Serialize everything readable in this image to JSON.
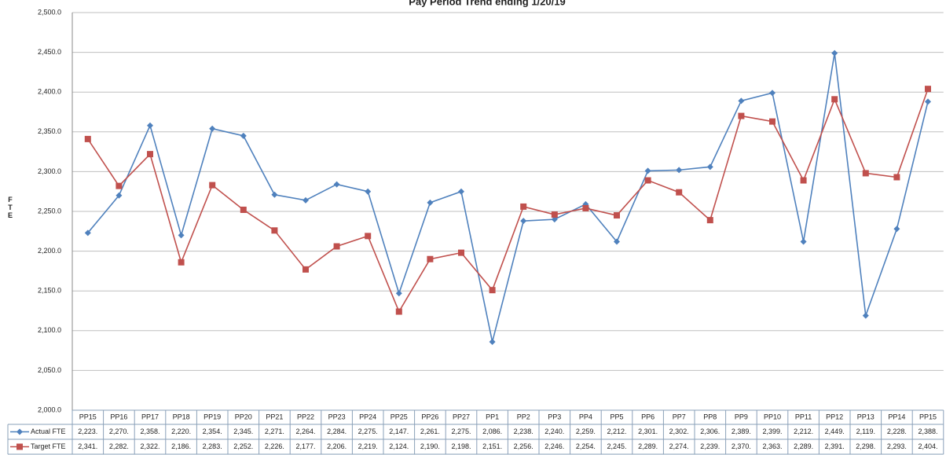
{
  "chart_data": {
    "type": "line",
    "title": "Pay Period Trend ending 1/20/19",
    "y_label": "FTE",
    "categories": [
      "PP15",
      "PP16",
      "PP17",
      "PP18",
      "PP19",
      "PP20",
      "PP21",
      "PP22",
      "PP23",
      "PP24",
      "PP25",
      "PP26",
      "PP27",
      "PP1",
      "PP2",
      "PP3",
      "PP4",
      "PP5",
      "PP6",
      "PP7",
      "PP8",
      "PP9",
      "PP10",
      "PP11",
      "PP12",
      "PP13",
      "PP14",
      "PP15"
    ],
    "series": [
      {
        "name": "Actual FTE",
        "color": "#4f81bd",
        "marker": "diamond",
        "values": [
          2223,
          2270,
          2358,
          2220,
          2354,
          2345,
          2271,
          2264,
          2284,
          2275,
          2147,
          2261,
          2275,
          2086,
          2238,
          2240,
          2259,
          2212,
          2301,
          2302,
          2306,
          2389,
          2399,
          2212,
          2449,
          2119,
          2228,
          2388
        ],
        "value_labels": [
          "2,223.",
          "2,270.",
          "2,358.",
          "2,220.",
          "2,354.",
          "2,345.",
          "2,271.",
          "2,264.",
          "2,284.",
          "2,275.",
          "2,147.",
          "2,261.",
          "2,275.",
          "2,086.",
          "2,238.",
          "2,240.",
          "2,259.",
          "2,212.",
          "2,301.",
          "2,302.",
          "2,306.",
          "2,389.",
          "2,399.",
          "2,212.",
          "2,449.",
          "2,119.",
          "2,228.",
          "2,388."
        ]
      },
      {
        "name": "Target FTE",
        "color": "#c0504d",
        "marker": "square",
        "values": [
          2341,
          2282,
          2322,
          2186,
          2283,
          2252,
          2226,
          2177,
          2206,
          2219,
          2124,
          2190,
          2198,
          2151,
          2256,
          2246,
          2254,
          2245,
          2289,
          2274,
          2239,
          2370,
          2363,
          2289,
          2391,
          2298,
          2293,
          2404
        ],
        "value_labels": [
          "2,341.",
          "2,282.",
          "2,322.",
          "2,186.",
          "2,283.",
          "2,252.",
          "2,226.",
          "2,177.",
          "2,206.",
          "2,219.",
          "2,124.",
          "2,190.",
          "2,198.",
          "2,151.",
          "2,256.",
          "2,246.",
          "2,254.",
          "2,245.",
          "2,289.",
          "2,274.",
          "2,239.",
          "2,370.",
          "2,363.",
          "2,289.",
          "2,391.",
          "2,298.",
          "2,293.",
          "2,404."
        ]
      }
    ],
    "ylim": [
      2000,
      2500
    ],
    "yticks": [
      {
        "value": 2000,
        "label": "2,000.0"
      },
      {
        "value": 2050,
        "label": "2,050.0"
      },
      {
        "value": 2100,
        "label": "2,100.0"
      },
      {
        "value": 2150,
        "label": "2,150.0"
      },
      {
        "value": 2200,
        "label": "2,200.0"
      },
      {
        "value": 2250,
        "label": "2,250.0"
      },
      {
        "value": 2300,
        "label": "2,300.0"
      },
      {
        "value": 2350,
        "label": "2,350.0"
      },
      {
        "value": 2400,
        "label": "2,400.0"
      },
      {
        "value": 2450,
        "label": "2,450.0"
      },
      {
        "value": 2500,
        "label": "2,500.0"
      }
    ],
    "grid": true
  }
}
